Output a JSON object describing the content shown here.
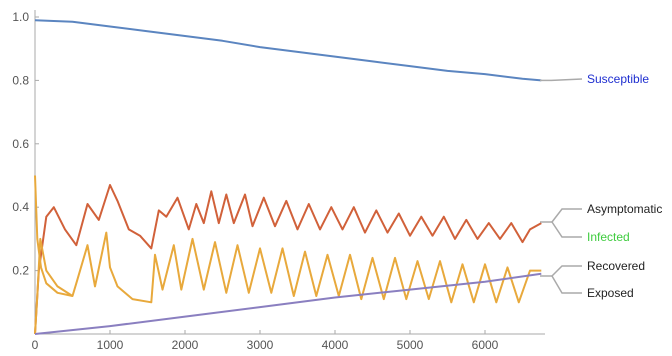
{
  "chart_data": {
    "type": "line",
    "title": "",
    "xlabel": "",
    "ylabel": "",
    "xlim": [
      0,
      6800
    ],
    "ylim": [
      0,
      1.0
    ],
    "grid": false,
    "legend_placement": "right",
    "x_ticks": [
      "0",
      "1000",
      "2000",
      "3000",
      "4000",
      "5000",
      "6000"
    ],
    "y_ticks": [
      "0.2",
      "0.4",
      "0.6",
      "0.8",
      "1.0"
    ],
    "series": [
      {
        "name": "Susceptible",
        "color": "#5b85c0",
        "label_color": "#1f2fd0",
        "x": [
          0,
          500,
          1000,
          1500,
          2000,
          2500,
          3000,
          3500,
          4000,
          4500,
          5000,
          5500,
          6000,
          6500,
          6750
        ],
        "y": [
          0.99,
          0.985,
          0.97,
          0.955,
          0.94,
          0.925,
          0.905,
          0.89,
          0.875,
          0.86,
          0.845,
          0.83,
          0.82,
          0.805,
          0.8
        ]
      },
      {
        "name": "Asymptomatic",
        "color": "#d1613a",
        "label_color": "#222222",
        "x": [
          0,
          50,
          150,
          250,
          400,
          550,
          700,
          850,
          1000,
          1100,
          1250,
          1400,
          1550,
          1650,
          1750,
          1900,
          2050,
          2150,
          2250,
          2350,
          2450,
          2550,
          2650,
          2800,
          2900,
          3050,
          3200,
          3350,
          3500,
          3650,
          3800,
          3950,
          4100,
          4250,
          4400,
          4550,
          4700,
          4850,
          5000,
          5150,
          5300,
          5450,
          5600,
          5750,
          5900,
          6050,
          6200,
          6350,
          6500,
          6600,
          6750
        ],
        "y": [
          0.0,
          0.2,
          0.37,
          0.4,
          0.33,
          0.28,
          0.41,
          0.36,
          0.47,
          0.42,
          0.33,
          0.31,
          0.27,
          0.39,
          0.37,
          0.43,
          0.33,
          0.41,
          0.35,
          0.45,
          0.35,
          0.44,
          0.35,
          0.44,
          0.34,
          0.43,
          0.34,
          0.42,
          0.33,
          0.41,
          0.33,
          0.4,
          0.33,
          0.4,
          0.32,
          0.39,
          0.32,
          0.38,
          0.31,
          0.37,
          0.31,
          0.37,
          0.3,
          0.36,
          0.3,
          0.35,
          0.3,
          0.35,
          0.29,
          0.33,
          0.35
        ]
      },
      {
        "name": "Infected",
        "color": "#e8a93c",
        "label_color": "#3fcc3f",
        "x": [
          0,
          30,
          80,
          150,
          300,
          500,
          550,
          700,
          800,
          950,
          1000,
          1100,
          1300,
          1550,
          1600,
          1700,
          1850,
          1950,
          2100,
          2250,
          2400,
          2550,
          2700,
          2850,
          3000,
          3150,
          3300,
          3450,
          3600,
          3750,
          3900,
          4050,
          4200,
          4350,
          4500,
          4650,
          4800,
          4950,
          5100,
          5250,
          5400,
          5550,
          5700,
          5850,
          6000,
          6150,
          6300,
          6450,
          6600,
          6750
        ],
        "y": [
          0.5,
          0.3,
          0.21,
          0.16,
          0.13,
          0.12,
          0.16,
          0.28,
          0.15,
          0.32,
          0.21,
          0.15,
          0.11,
          0.1,
          0.25,
          0.14,
          0.28,
          0.14,
          0.3,
          0.14,
          0.29,
          0.13,
          0.28,
          0.13,
          0.27,
          0.13,
          0.27,
          0.12,
          0.26,
          0.12,
          0.25,
          0.12,
          0.25,
          0.11,
          0.24,
          0.11,
          0.24,
          0.11,
          0.23,
          0.11,
          0.23,
          0.1,
          0.22,
          0.1,
          0.22,
          0.1,
          0.21,
          0.1,
          0.2,
          0.2
        ]
      },
      {
        "name": "Recovered",
        "color": "#e8a93c",
        "label_color": "#222222",
        "x": [
          0,
          30,
          70,
          150,
          300,
          500
        ],
        "y": [
          0.0,
          0.12,
          0.3,
          0.2,
          0.15,
          0.12
        ]
      },
      {
        "name": "Exposed",
        "color": "#8a7fc0",
        "label_color": "#222222",
        "x": [
          0,
          1000,
          2000,
          3000,
          4000,
          5000,
          6000,
          6750
        ],
        "y": [
          0.0,
          0.025,
          0.055,
          0.085,
          0.115,
          0.14,
          0.165,
          0.19
        ]
      }
    ]
  }
}
